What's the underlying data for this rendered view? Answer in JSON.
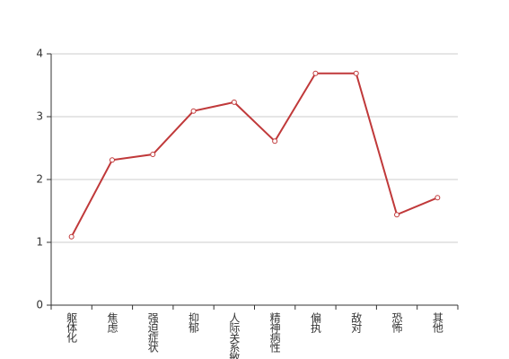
{
  "chart_data": {
    "type": "line",
    "categories": [
      "躯体化",
      "焦虑",
      "强迫症状",
      "抑郁",
      "人际关系敏感",
      "精神病性",
      "偏执",
      "敌对",
      "恐怖",
      "其他"
    ],
    "series": [
      {
        "color": "#c0393a",
        "values": [
          1.09,
          2.31,
          2.4,
          3.09,
          3.23,
          2.61,
          3.69,
          3.69,
          1.44,
          1.71
        ]
      }
    ],
    "ylim": [
      0,
      4
    ],
    "yticks": [
      0,
      1,
      2,
      3,
      4
    ],
    "grid": true
  }
}
